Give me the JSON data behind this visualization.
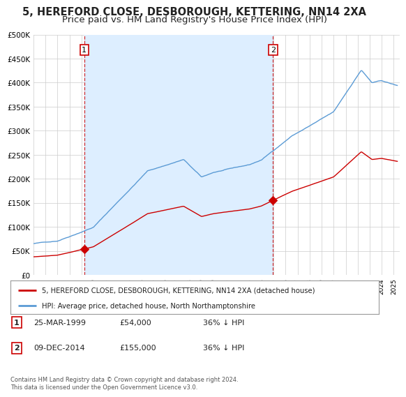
{
  "title": "5, HEREFORD CLOSE, DESBOROUGH, KETTERING, NN14 2XA",
  "subtitle": "Price paid vs. HM Land Registry's House Price Index (HPI)",
  "ylim": [
    0,
    500000
  ],
  "yticks": [
    0,
    50000,
    100000,
    150000,
    200000,
    250000,
    300000,
    350000,
    400000,
    450000,
    500000
  ],
  "ytick_labels": [
    "£0",
    "£50K",
    "£100K",
    "£150K",
    "£200K",
    "£250K",
    "£300K",
    "£350K",
    "£400K",
    "£450K",
    "£500K"
  ],
  "hpi_color": "#5b9bd5",
  "price_color": "#cc0000",
  "shade_color": "#ddeeff",
  "sale1_date": 1999.23,
  "sale1_price": 54000,
  "sale2_date": 2014.94,
  "sale2_price": 155000,
  "legend_label1": "5, HEREFORD CLOSE, DESBOROUGH, KETTERING, NN14 2XA (detached house)",
  "legend_label2": "HPI: Average price, detached house, North Northamptonshire",
  "table_row1": [
    "1",
    "25-MAR-1999",
    "£54,000",
    "36% ↓ HPI"
  ],
  "table_row2": [
    "2",
    "09-DEC-2014",
    "£155,000",
    "36% ↓ HPI"
  ],
  "footnote": "Contains HM Land Registry data © Crown copyright and database right 2024.\nThis data is licensed under the Open Government Licence v3.0.",
  "background_color": "#ffffff",
  "grid_color": "#cccccc",
  "title_fontsize": 10.5,
  "subtitle_fontsize": 9.5,
  "xmin": 1995,
  "xmax": 2025.5
}
